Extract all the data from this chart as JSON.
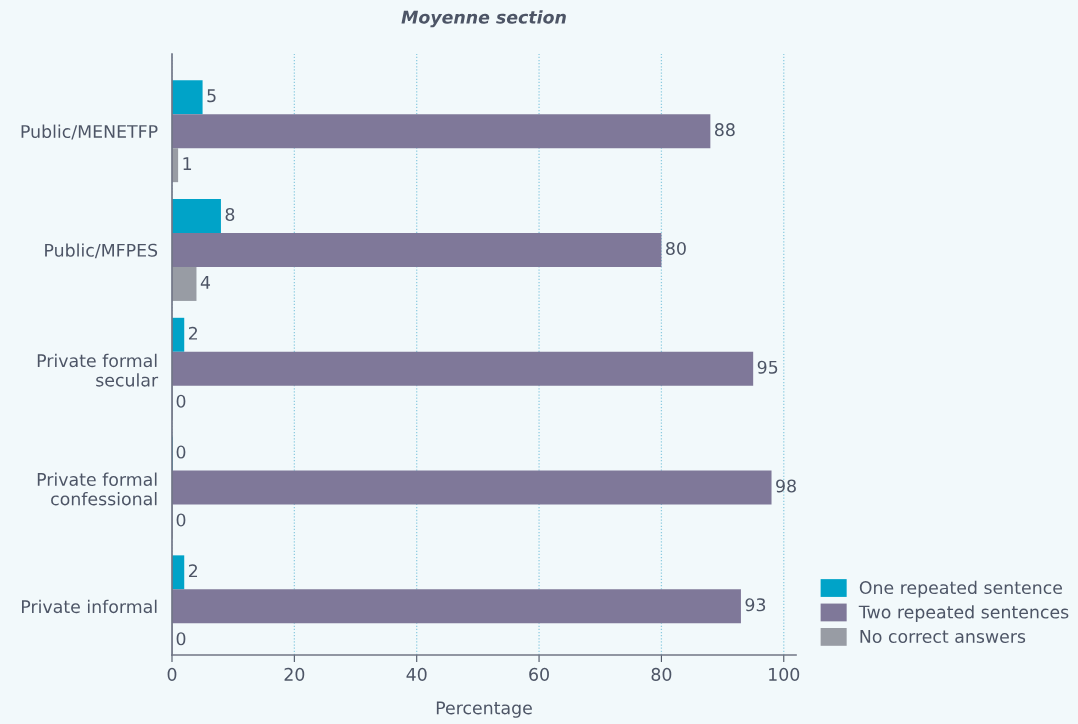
{
  "chart_data": {
    "type": "bar",
    "orientation": "horizontal",
    "title": "Moyenne section",
    "xlabel": "Percentage",
    "categories": [
      "Public/MENETFP",
      "Public/MFPES",
      "Private formal\nsecular",
      "Private formal\nconfessional",
      "Private informal"
    ],
    "series": [
      {
        "name": "One repeated sentence",
        "color": "#00a3c8",
        "values": [
          5,
          8,
          2,
          0,
          2
        ]
      },
      {
        "name": "Two repeated sentences",
        "color": "#7f7899",
        "values": [
          88,
          80,
          95,
          98,
          93
        ]
      },
      {
        "name": "No correct answers",
        "color": "#989ca4",
        "values": [
          1,
          4,
          0,
          0,
          0
        ]
      }
    ],
    "xlim": [
      0,
      102
    ],
    "xticks": [
      0,
      20,
      40,
      60,
      80,
      100
    ],
    "grid": "x",
    "legend": "bottom right",
    "data_labels": true
  }
}
